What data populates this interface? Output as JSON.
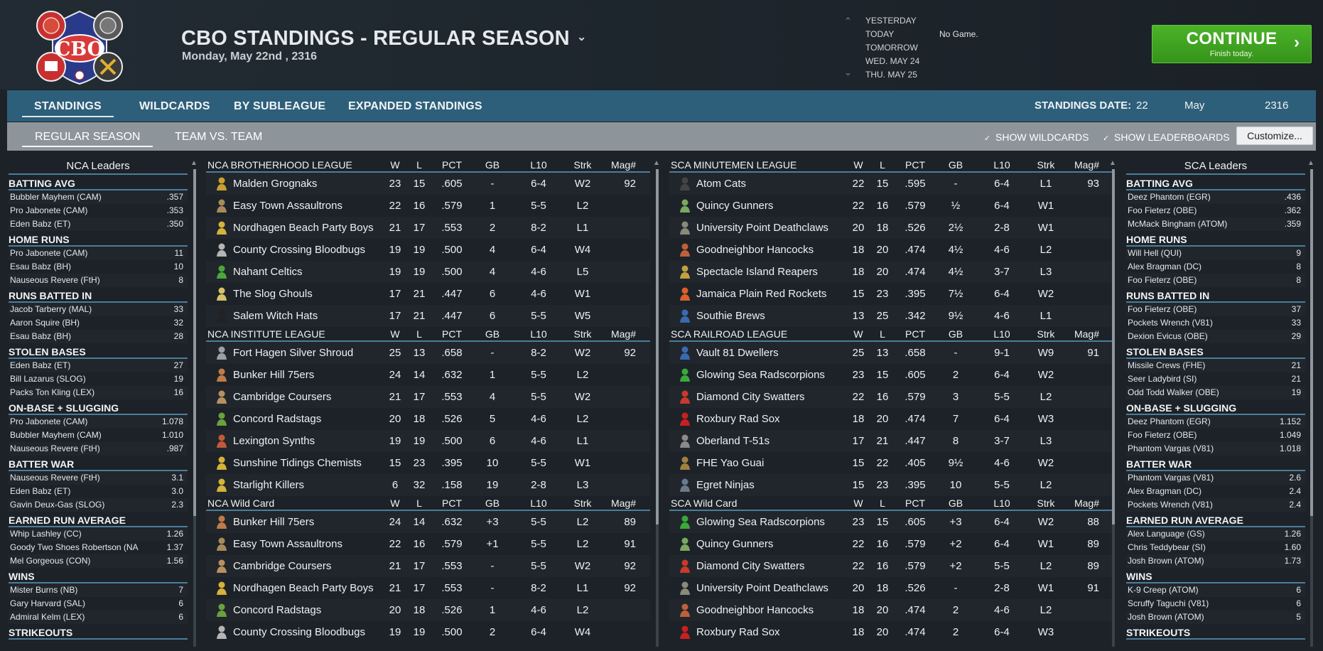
{
  "header": {
    "title": "CBO STANDINGS - REGULAR SEASON",
    "date": "Monday, May 22nd , 2316",
    "logo_text": "CBO"
  },
  "schedule": {
    "days": [
      "YESTERDAY",
      "TODAY",
      "TOMORROW",
      "WED. MAY 24",
      "THU. MAY 25"
    ],
    "today_status": "No Game."
  },
  "continue_button": {
    "label": "CONTINUE",
    "sublabel": "Finish today."
  },
  "tabs": {
    "primary": [
      "STANDINGS",
      "WILDCARDS",
      "BY SUBLEAGUE",
      "EXPANDED STANDINGS"
    ],
    "secondary": [
      "REGULAR SEASON",
      "TEAM VS. TEAM"
    ]
  },
  "standings_date": {
    "label": "STANDINGS DATE:",
    "day": "22",
    "month": "May",
    "year": "2316"
  },
  "options": {
    "show_wildcards": "SHOW WILDCARDS",
    "show_leaderboards": "SHOW LEADERBOARDS",
    "customize": "Customize..."
  },
  "colors": {
    "accent": "#2e5f7a",
    "continue_green": "#3ea421",
    "divider": "#4b7d9a"
  },
  "columns": [
    "W",
    "L",
    "PCT",
    "GB",
    "L10",
    "Strk",
    "Mag#"
  ],
  "nca_leaders": {
    "title": "NCA Leaders",
    "categories": [
      {
        "name": "BATTING AVG",
        "rows": [
          [
            "Bubbler Mayhem (CAM)",
            ".357"
          ],
          [
            "Pro Jabonete (CAM)",
            ".353"
          ],
          [
            "Eden Babz (ET)",
            ".350"
          ]
        ]
      },
      {
        "name": "HOME RUNS",
        "rows": [
          [
            "Pro Jabonete (CAM)",
            "11"
          ],
          [
            "Esau Babz (BH)",
            "10"
          ],
          [
            "Nauseous Revere (FtH)",
            "8"
          ]
        ]
      },
      {
        "name": "RUNS BATTED IN",
        "rows": [
          [
            "Jacob Tarberry (MAL)",
            "33"
          ],
          [
            "Aaron Squire (BH)",
            "32"
          ],
          [
            "Esau Babz (BH)",
            "28"
          ]
        ]
      },
      {
        "name": "STOLEN BASES",
        "rows": [
          [
            "Eden Babz (ET)",
            "27"
          ],
          [
            "Bill Lazarus (SLOG)",
            "19"
          ],
          [
            "Packs Ton Kling (LEX)",
            "16"
          ]
        ]
      },
      {
        "name": "ON-BASE + SLUGGING",
        "rows": [
          [
            "Pro Jabonete (CAM)",
            "1.078"
          ],
          [
            "Bubbler Mayhem (CAM)",
            "1.010"
          ],
          [
            "Nauseous Revere (FtH)",
            ".987"
          ]
        ]
      },
      {
        "name": "BATTER WAR",
        "rows": [
          [
            "Nauseous Revere (FtH)",
            "3.1"
          ],
          [
            "Eden Babz (ET)",
            "3.0"
          ],
          [
            "Gavin Deux-Gas (SLOG)",
            "2.3"
          ]
        ]
      },
      {
        "name": "EARNED RUN AVERAGE",
        "rows": [
          [
            "Whip Lashley (CC)",
            "1.26"
          ],
          [
            "Goody Two Shoes Robertson (NA",
            "1.37"
          ],
          [
            "Mel Gorgeous (CON)",
            "1.56"
          ]
        ]
      },
      {
        "name": "WINS",
        "rows": [
          [
            "Mister Burns (NB)",
            "7"
          ],
          [
            "Gary Harvard (SAL)",
            "6"
          ],
          [
            "Admiral Kelm (LEX)",
            "6"
          ]
        ]
      },
      {
        "name": "STRIKEOUTS",
        "rows": []
      }
    ]
  },
  "sca_leaders": {
    "title": "SCA Leaders",
    "categories": [
      {
        "name": "BATTING AVG",
        "rows": [
          [
            "Deez Phantom (EGR)",
            ".436"
          ],
          [
            "Foo Fieterz (OBE)",
            ".362"
          ],
          [
            "McMack Bingham (ATOM)",
            ".359"
          ]
        ]
      },
      {
        "name": "HOME RUNS",
        "rows": [
          [
            "Will Hell (QUI)",
            "9"
          ],
          [
            "Alex Bragman (DC)",
            "8"
          ],
          [
            "Foo Fieterz (OBE)",
            "8"
          ]
        ]
      },
      {
        "name": "RUNS BATTED IN",
        "rows": [
          [
            "Foo Fieterz (OBE)",
            "37"
          ],
          [
            "Pockets Wrench (V81)",
            "33"
          ],
          [
            "Dexion Evicus (OBE)",
            "29"
          ]
        ]
      },
      {
        "name": "STOLEN BASES",
        "rows": [
          [
            "Missile Crews (FHE)",
            "21"
          ],
          [
            "Seer Ladybird (SI)",
            "21"
          ],
          [
            "Odd Todd Walker (OBE)",
            "19"
          ]
        ]
      },
      {
        "name": "ON-BASE + SLUGGING",
        "rows": [
          [
            "Deez Phantom (EGR)",
            "1.152"
          ],
          [
            "Foo Fieterz (OBE)",
            "1.049"
          ],
          [
            "Phantom Vargas (V81)",
            "1.018"
          ]
        ]
      },
      {
        "name": "BATTER WAR",
        "rows": [
          [
            "Phantom Vargas (V81)",
            "2.6"
          ],
          [
            "Alex Bragman (DC)",
            "2.4"
          ],
          [
            "Pockets Wrench (V81)",
            "2.4"
          ]
        ]
      },
      {
        "name": "EARNED RUN AVERAGE",
        "rows": [
          [
            "Alex Language (GS)",
            "1.26"
          ],
          [
            "Chris Teddybear (SI)",
            "1.60"
          ],
          [
            "Josh Brown (ATOM)",
            "1.73"
          ]
        ]
      },
      {
        "name": "WINS",
        "rows": [
          [
            "K-9 Creep (ATOM)",
            "6"
          ],
          [
            "Scruffy Taguchi (V81)",
            "6"
          ],
          [
            "Josh Brown (ATOM)",
            "5"
          ]
        ]
      },
      {
        "name": "STRIKEOUTS",
        "rows": []
      }
    ]
  },
  "nca_standings": [
    {
      "league": "NCA BROTHERHOOD LEAGUE",
      "teams": [
        {
          "name": "Malden Grognaks",
          "icon": "#c9a030",
          "w": "23",
          "l": "15",
          "pct": ".605",
          "gb": "-",
          "l10": "6-4",
          "strk": "W2",
          "mag": "92"
        },
        {
          "name": "Easy Town Assaultrons",
          "icon": "#a88a5a",
          "w": "22",
          "l": "16",
          "pct": ".579",
          "gb": "1",
          "l10": "5-5",
          "strk": "L2",
          "mag": ""
        },
        {
          "name": "Nordhagen Beach Party Boys",
          "icon": "#d6b23a",
          "w": "21",
          "l": "17",
          "pct": ".553",
          "gb": "2",
          "l10": "8-2",
          "strk": "L1",
          "mag": ""
        },
        {
          "name": "County Crossing Bloodbugs",
          "icon": "#b5b5b5",
          "w": "19",
          "l": "19",
          "pct": ".500",
          "gb": "4",
          "l10": "6-4",
          "strk": "W4",
          "mag": ""
        },
        {
          "name": "Nahant Celtics",
          "icon": "#4aa83a",
          "w": "19",
          "l": "19",
          "pct": ".500",
          "gb": "4",
          "l10": "4-6",
          "strk": "L5",
          "mag": ""
        },
        {
          "name": "The Slog Ghouls",
          "icon": "#d9c06a",
          "w": "17",
          "l": "21",
          "pct": ".447",
          "gb": "6",
          "l10": "4-6",
          "strk": "W1",
          "mag": ""
        },
        {
          "name": "Salem Witch Hats",
          "icon": "#222222",
          "w": "17",
          "l": "21",
          "pct": ".447",
          "gb": "6",
          "l10": "5-5",
          "strk": "W5",
          "mag": ""
        }
      ]
    },
    {
      "league": "NCA INSTITUTE LEAGUE",
      "teams": [
        {
          "name": "Fort Hagen Silver Shroud",
          "icon": "#9aa0a6",
          "w": "25",
          "l": "13",
          "pct": ".658",
          "gb": "-",
          "l10": "8-2",
          "strk": "W2",
          "mag": "92"
        },
        {
          "name": "Bunker Hill 75ers",
          "icon": "#c07a4a",
          "w": "24",
          "l": "14",
          "pct": ".632",
          "gb": "1",
          "l10": "5-5",
          "strk": "L2",
          "mag": ""
        },
        {
          "name": "Cambridge Coursers",
          "icon": "#b89060",
          "w": "21",
          "l": "17",
          "pct": ".553",
          "gb": "4",
          "l10": "5-5",
          "strk": "W2",
          "mag": ""
        },
        {
          "name": "Concord Radstags",
          "icon": "#6aa040",
          "w": "20",
          "l": "18",
          "pct": ".526",
          "gb": "5",
          "l10": "4-6",
          "strk": "L2",
          "mag": ""
        },
        {
          "name": "Lexington Synths",
          "icon": "#c05a3a",
          "w": "19",
          "l": "19",
          "pct": ".500",
          "gb": "6",
          "l10": "4-6",
          "strk": "L1",
          "mag": ""
        },
        {
          "name": "Sunshine Tidings Chemists",
          "icon": "#d6b23a",
          "w": "15",
          "l": "23",
          "pct": ".395",
          "gb": "10",
          "l10": "5-5",
          "strk": "W1",
          "mag": ""
        },
        {
          "name": "Starlight Killers",
          "icon": "#d6b23a",
          "w": "6",
          "l": "32",
          "pct": ".158",
          "gb": "19",
          "l10": "2-8",
          "strk": "L3",
          "mag": ""
        }
      ]
    },
    {
      "league": "NCA  Wild Card",
      "teams": [
        {
          "name": "Bunker Hill 75ers",
          "icon": "#c07a4a",
          "w": "24",
          "l": "14",
          "pct": ".632",
          "gb": "+3",
          "l10": "5-5",
          "strk": "L2",
          "mag": "89"
        },
        {
          "name": "Easy Town Assaultrons",
          "icon": "#a88a5a",
          "w": "22",
          "l": "16",
          "pct": ".579",
          "gb": "+1",
          "l10": "5-5",
          "strk": "L2",
          "mag": "91"
        },
        {
          "name": "Cambridge Coursers",
          "icon": "#b89060",
          "w": "21",
          "l": "17",
          "pct": ".553",
          "gb": "-",
          "l10": "5-5",
          "strk": "W2",
          "mag": "92"
        },
        {
          "name": "Nordhagen Beach Party Boys",
          "icon": "#d6b23a",
          "w": "21",
          "l": "17",
          "pct": ".553",
          "gb": "-",
          "l10": "8-2",
          "strk": "L1",
          "mag": "92"
        },
        {
          "name": "Concord Radstags",
          "icon": "#6aa040",
          "w": "20",
          "l": "18",
          "pct": ".526",
          "gb": "1",
          "l10": "4-6",
          "strk": "L2",
          "mag": ""
        },
        {
          "name": "County Crossing Bloodbugs",
          "icon": "#b5b5b5",
          "w": "19",
          "l": "19",
          "pct": ".500",
          "gb": "2",
          "l10": "6-4",
          "strk": "W4",
          "mag": ""
        }
      ]
    }
  ],
  "sca_standings": [
    {
      "league": "SCA MINUTEMEN LEAGUE",
      "teams": [
        {
          "name": "Atom Cats",
          "icon": "#444444",
          "w": "22",
          "l": "15",
          "pct": ".595",
          "gb": "-",
          "l10": "6-4",
          "strk": "L1",
          "mag": "93"
        },
        {
          "name": "Quincy Gunners",
          "icon": "#7aa860",
          "w": "22",
          "l": "16",
          "pct": ".579",
          "gb": "½",
          "l10": "6-4",
          "strk": "W1",
          "mag": ""
        },
        {
          "name": "University Point Deathclaws",
          "icon": "#8a8a7a",
          "w": "20",
          "l": "18",
          "pct": ".526",
          "gb": "2½",
          "l10": "2-8",
          "strk": "W1",
          "mag": ""
        },
        {
          "name": "Goodneighbor Hancocks",
          "icon": "#c0603a",
          "w": "18",
          "l": "20",
          "pct": ".474",
          "gb": "4½",
          "l10": "4-6",
          "strk": "L2",
          "mag": ""
        },
        {
          "name": "Spectacle Island Reapers",
          "icon": "#c0a040",
          "w": "18",
          "l": "20",
          "pct": ".474",
          "gb": "4½",
          "l10": "3-7",
          "strk": "L3",
          "mag": ""
        },
        {
          "name": "Jamaica Plain Red Rockets",
          "icon": "#d8602a",
          "w": "15",
          "l": "23",
          "pct": ".395",
          "gb": "7½",
          "l10": "6-4",
          "strk": "W2",
          "mag": ""
        },
        {
          "name": "Southie Brews",
          "icon": "#3a6ab0",
          "w": "13",
          "l": "25",
          "pct": ".342",
          "gb": "9½",
          "l10": "4-6",
          "strk": "L1",
          "mag": ""
        }
      ]
    },
    {
      "league": "SCA RAILROAD LEAGUE",
      "teams": [
        {
          "name": "Vault 81 Dwellers",
          "icon": "#3a6ab0",
          "w": "25",
          "l": "13",
          "pct": ".658",
          "gb": "-",
          "l10": "9-1",
          "strk": "W9",
          "mag": "91"
        },
        {
          "name": "Glowing Sea Radscorpions",
          "icon": "#3aa83a",
          "w": "23",
          "l": "15",
          "pct": ".605",
          "gb": "2",
          "l10": "6-4",
          "strk": "W2",
          "mag": ""
        },
        {
          "name": "Diamond City Swatters",
          "icon": "#c83a2a",
          "w": "22",
          "l": "16",
          "pct": ".579",
          "gb": "3",
          "l10": "5-5",
          "strk": "L2",
          "mag": ""
        },
        {
          "name": "Roxbury Rad Sox",
          "icon": "#c82020",
          "w": "18",
          "l": "20",
          "pct": ".474",
          "gb": "7",
          "l10": "6-4",
          "strk": "W3",
          "mag": ""
        },
        {
          "name": "Oberland T-51s",
          "icon": "#8a8a8a",
          "w": "17",
          "l": "21",
          "pct": ".447",
          "gb": "8",
          "l10": "3-7",
          "strk": "L3",
          "mag": ""
        },
        {
          "name": "FHE Yao Guai",
          "icon": "#a08040",
          "w": "15",
          "l": "22",
          "pct": ".405",
          "gb": "9½",
          "l10": "4-6",
          "strk": "W2",
          "mag": ""
        },
        {
          "name": "Egret Ninjas",
          "icon": "#6a7a8a",
          "w": "15",
          "l": "23",
          "pct": ".395",
          "gb": "10",
          "l10": "5-5",
          "strk": "L2",
          "mag": ""
        }
      ]
    },
    {
      "league": "SCA  Wild Card",
      "teams": [
        {
          "name": "Glowing Sea Radscorpions",
          "icon": "#3aa83a",
          "w": "23",
          "l": "15",
          "pct": ".605",
          "gb": "+3",
          "l10": "6-4",
          "strk": "W2",
          "mag": "88"
        },
        {
          "name": "Quincy Gunners",
          "icon": "#7aa860",
          "w": "22",
          "l": "16",
          "pct": ".579",
          "gb": "+2",
          "l10": "6-4",
          "strk": "W1",
          "mag": "89"
        },
        {
          "name": "Diamond City Swatters",
          "icon": "#c83a2a",
          "w": "22",
          "l": "16",
          "pct": ".579",
          "gb": "+2",
          "l10": "5-5",
          "strk": "L2",
          "mag": "89"
        },
        {
          "name": "University Point Deathclaws",
          "icon": "#8a8a7a",
          "w": "20",
          "l": "18",
          "pct": ".526",
          "gb": "-",
          "l10": "2-8",
          "strk": "W1",
          "mag": "91"
        },
        {
          "name": "Goodneighbor Hancocks",
          "icon": "#c0603a",
          "w": "18",
          "l": "20",
          "pct": ".474",
          "gb": "2",
          "l10": "4-6",
          "strk": "L2",
          "mag": ""
        },
        {
          "name": "Roxbury Rad Sox",
          "icon": "#c82020",
          "w": "18",
          "l": "20",
          "pct": ".474",
          "gb": "2",
          "l10": "6-4",
          "strk": "W3",
          "mag": ""
        }
      ]
    }
  ]
}
